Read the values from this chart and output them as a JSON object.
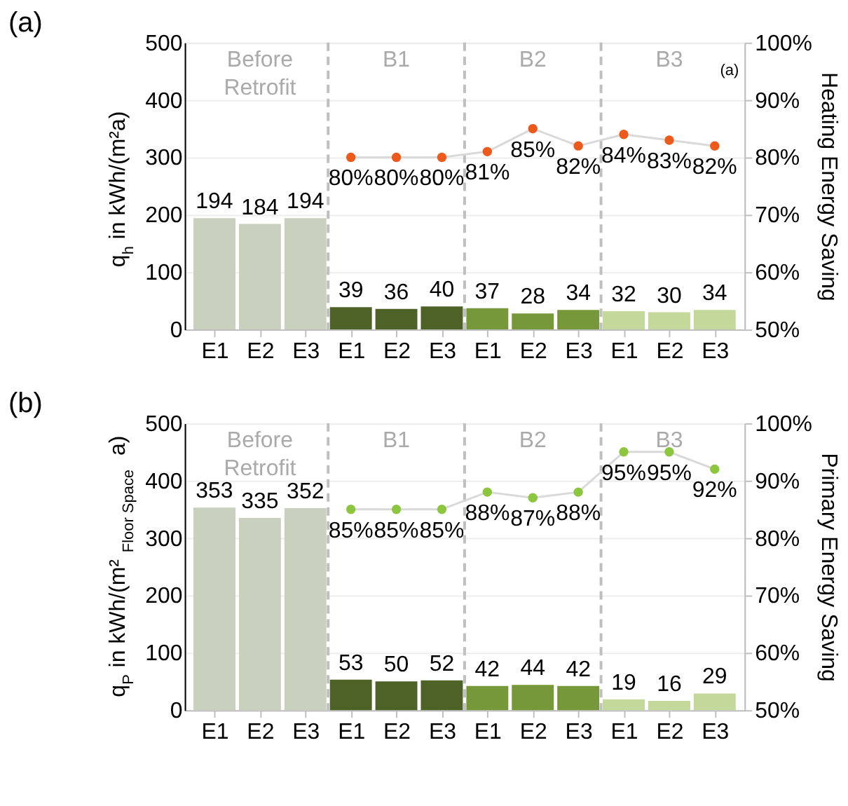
{
  "chart_data": [
    {
      "type": "bar",
      "title": "(a)",
      "ylabel": "q$_{h}$ in kWh/(m²a)",
      "y2label": "Heating Energy Saving",
      "categories": [
        "E1",
        "E2",
        "E3",
        "E1",
        "E2",
        "E3",
        "E1",
        "E2",
        "E3",
        "E1",
        "E2",
        "E3"
      ],
      "ylim": [
        0,
        500
      ],
      "yticks": [
        0,
        100,
        200,
        300,
        400,
        500
      ],
      "y2lim": [
        50,
        100
      ],
      "y2ticks": [
        {
          "value": 50,
          "label": "50%"
        },
        {
          "value": 60,
          "label": "60%"
        },
        {
          "value": 70,
          "label": "70%"
        },
        {
          "value": 80,
          "label": "80%"
        },
        {
          "value": 90,
          "label": "90%"
        },
        {
          "value": 100,
          "label": "100%"
        }
      ],
      "grid": "y",
      "data_labels": true,
      "series": [
        {
          "values": [
            194,
            184,
            194,
            39,
            36,
            40,
            37,
            28,
            34,
            32,
            30,
            34
          ],
          "colors": [
            "#c9d0bd",
            "#c9d0bd",
            "#c9d0bd",
            "#4e6127",
            "#4e6127",
            "#4e6127",
            "#76973a",
            "#76973a",
            "#76973a",
            "#c3d89a",
            "#c3d89a",
            "#c3d89a"
          ]
        },
        {
          "type": "line",
          "axis": "y2",
          "color": "#d9d9d9",
          "marker": "circle",
          "colors": [
            null,
            null,
            null,
            "#ec5a1c",
            "#ec5a1c",
            "#ec5a1c",
            "#ec5a1c",
            "#ec5a1c",
            "#ec5a1c",
            "#ec5a1c",
            "#ec5a1c",
            "#ec5a1c"
          ],
          "values": [
            null,
            null,
            null,
            80,
            80,
            80,
            81,
            85,
            82,
            84,
            83,
            82
          ],
          "value_labels": [
            null,
            null,
            null,
            "80%",
            "80%",
            "80%",
            "81%",
            "85%",
            "82%",
            "84%",
            "83%",
            "82%"
          ]
        }
      ],
      "annotations": [
        "Before\nRetrofit",
        "B1",
        "B2",
        "B3",
        "(a)"
      ]
    },
    {
      "type": "bar",
      "title": "(b)",
      "ylabel": "q$_{P}$ in kWh/(m²$_{Floor Space}$ a)",
      "y2label": "Primary Energy Saving",
      "categories": [
        "E1",
        "E2",
        "E3",
        "E1",
        "E2",
        "E3",
        "E1",
        "E2",
        "E3",
        "E1",
        "E2",
        "E3"
      ],
      "ylim": [
        0,
        500
      ],
      "yticks": [
        0,
        100,
        200,
        300,
        400,
        500
      ],
      "y2lim": [
        50,
        100
      ],
      "y2ticks": [
        {
          "value": 50,
          "label": "50%"
        },
        {
          "value": 60,
          "label": "60%"
        },
        {
          "value": 70,
          "label": "70%"
        },
        {
          "value": 80,
          "label": "80%"
        },
        {
          "value": 90,
          "label": "90%"
        },
        {
          "value": 100,
          "label": "100%"
        }
      ],
      "grid": "y",
      "data_labels": true,
      "series": [
        {
          "values": [
            353,
            335,
            352,
            53,
            50,
            52,
            42,
            44,
            42,
            19,
            16,
            29
          ],
          "colors": [
            "#c9d0bd",
            "#c9d0bd",
            "#c9d0bd",
            "#4e6127",
            "#4e6127",
            "#4e6127",
            "#76973a",
            "#76973a",
            "#76973a",
            "#c3d89a",
            "#c3d89a",
            "#c3d89a"
          ]
        },
        {
          "type": "line",
          "axis": "y2",
          "color": "#d9d9d9",
          "marker": "circle",
          "colors": [
            null,
            null,
            null,
            "#8cc63f",
            "#8cc63f",
            "#8cc63f",
            "#8cc63f",
            "#8cc63f",
            "#8cc63f",
            "#8cc63f",
            "#8cc63f",
            "#8cc63f"
          ],
          "values": [
            null,
            null,
            null,
            85,
            85,
            85,
            88,
            87,
            88,
            95,
            95,
            92
          ],
          "value_labels": [
            null,
            null,
            null,
            "85%",
            "85%",
            "85%",
            "88%",
            "87%",
            "88%",
            "95%",
            "95%",
            "92%"
          ]
        }
      ],
      "annotations": [
        "Before\nRetrofit",
        "B1",
        "B2",
        "B3"
      ]
    }
  ]
}
